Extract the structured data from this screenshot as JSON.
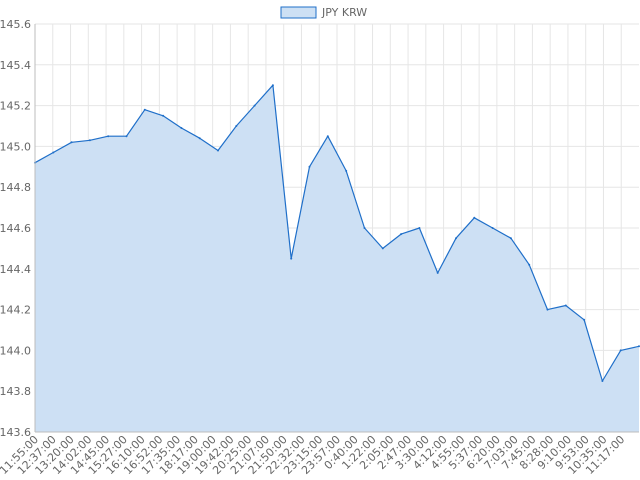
{
  "colors": {
    "line": "#1f6fc9",
    "fill": "#cde0f4",
    "grid": "#e6e6e6",
    "axis": "#bdbdbd",
    "text": "#666666"
  },
  "chart_data": {
    "type": "area",
    "legend": {
      "position": "top",
      "series_name": "JPY KRW"
    },
    "grid": true,
    "ylim": [
      143.6,
      145.6
    ],
    "y_ticks": [
      "145.6",
      "145.4",
      "145.2",
      "145.0",
      "144.8",
      "144.6",
      "144.4",
      "144.2",
      "144.0",
      "143.8",
      "143.6"
    ],
    "x_ticks": [
      "11:55:00",
      "12:37:00",
      "13:20:00",
      "14:02:00",
      "14:45:00",
      "15:27:00",
      "16:10:00",
      "16:52:00",
      "17:35:00",
      "18:17:00",
      "19:00:00",
      "19:42:00",
      "20:25:00",
      "21:07:00",
      "21:50:00",
      "22:32:00",
      "23:15:00",
      "23:57:00",
      "0:40:00",
      "1:22:00",
      "2:05:00",
      "2:47:00",
      "3:30:00",
      "4:12:00",
      "4:55:00",
      "5:37:00",
      "6:20:00",
      "7:03:00",
      "7:45:00",
      "8:28:00",
      "9:10:00",
      "9:53:00",
      "10:35:00",
      "11:17:00"
    ],
    "series": [
      {
        "name": "JPY KRW",
        "x": [
          "11:55:00",
          "12:37:00",
          "13:20:00",
          "14:02:00",
          "14:45:00",
          "15:27:00",
          "16:10:00",
          "16:52:00",
          "17:35:00",
          "18:17:00",
          "19:00:00",
          "19:42:00",
          "20:25:00",
          "21:07:00",
          "21:50:00",
          "22:32:00",
          "23:15:00",
          "23:57:00",
          "0:40:00",
          "1:22:00",
          "2:05:00",
          "2:47:00",
          "3:30:00",
          "4:12:00",
          "4:55:00",
          "5:37:00",
          "6:20:00",
          "7:03:00",
          "7:45:00",
          "8:28:00",
          "9:10:00",
          "9:53:00",
          "10:35:00",
          "11:17:00"
        ],
        "values": [
          144.92,
          144.97,
          145.02,
          145.03,
          145.05,
          145.05,
          145.18,
          145.15,
          145.09,
          145.04,
          144.98,
          145.1,
          145.2,
          145.3,
          144.45,
          144.9,
          145.05,
          144.88,
          144.6,
          144.5,
          144.57,
          144.6,
          144.38,
          144.55,
          144.65,
          144.6,
          144.55,
          144.42,
          144.2,
          144.22,
          144.15,
          143.85,
          144.0,
          144.02
        ]
      }
    ]
  }
}
